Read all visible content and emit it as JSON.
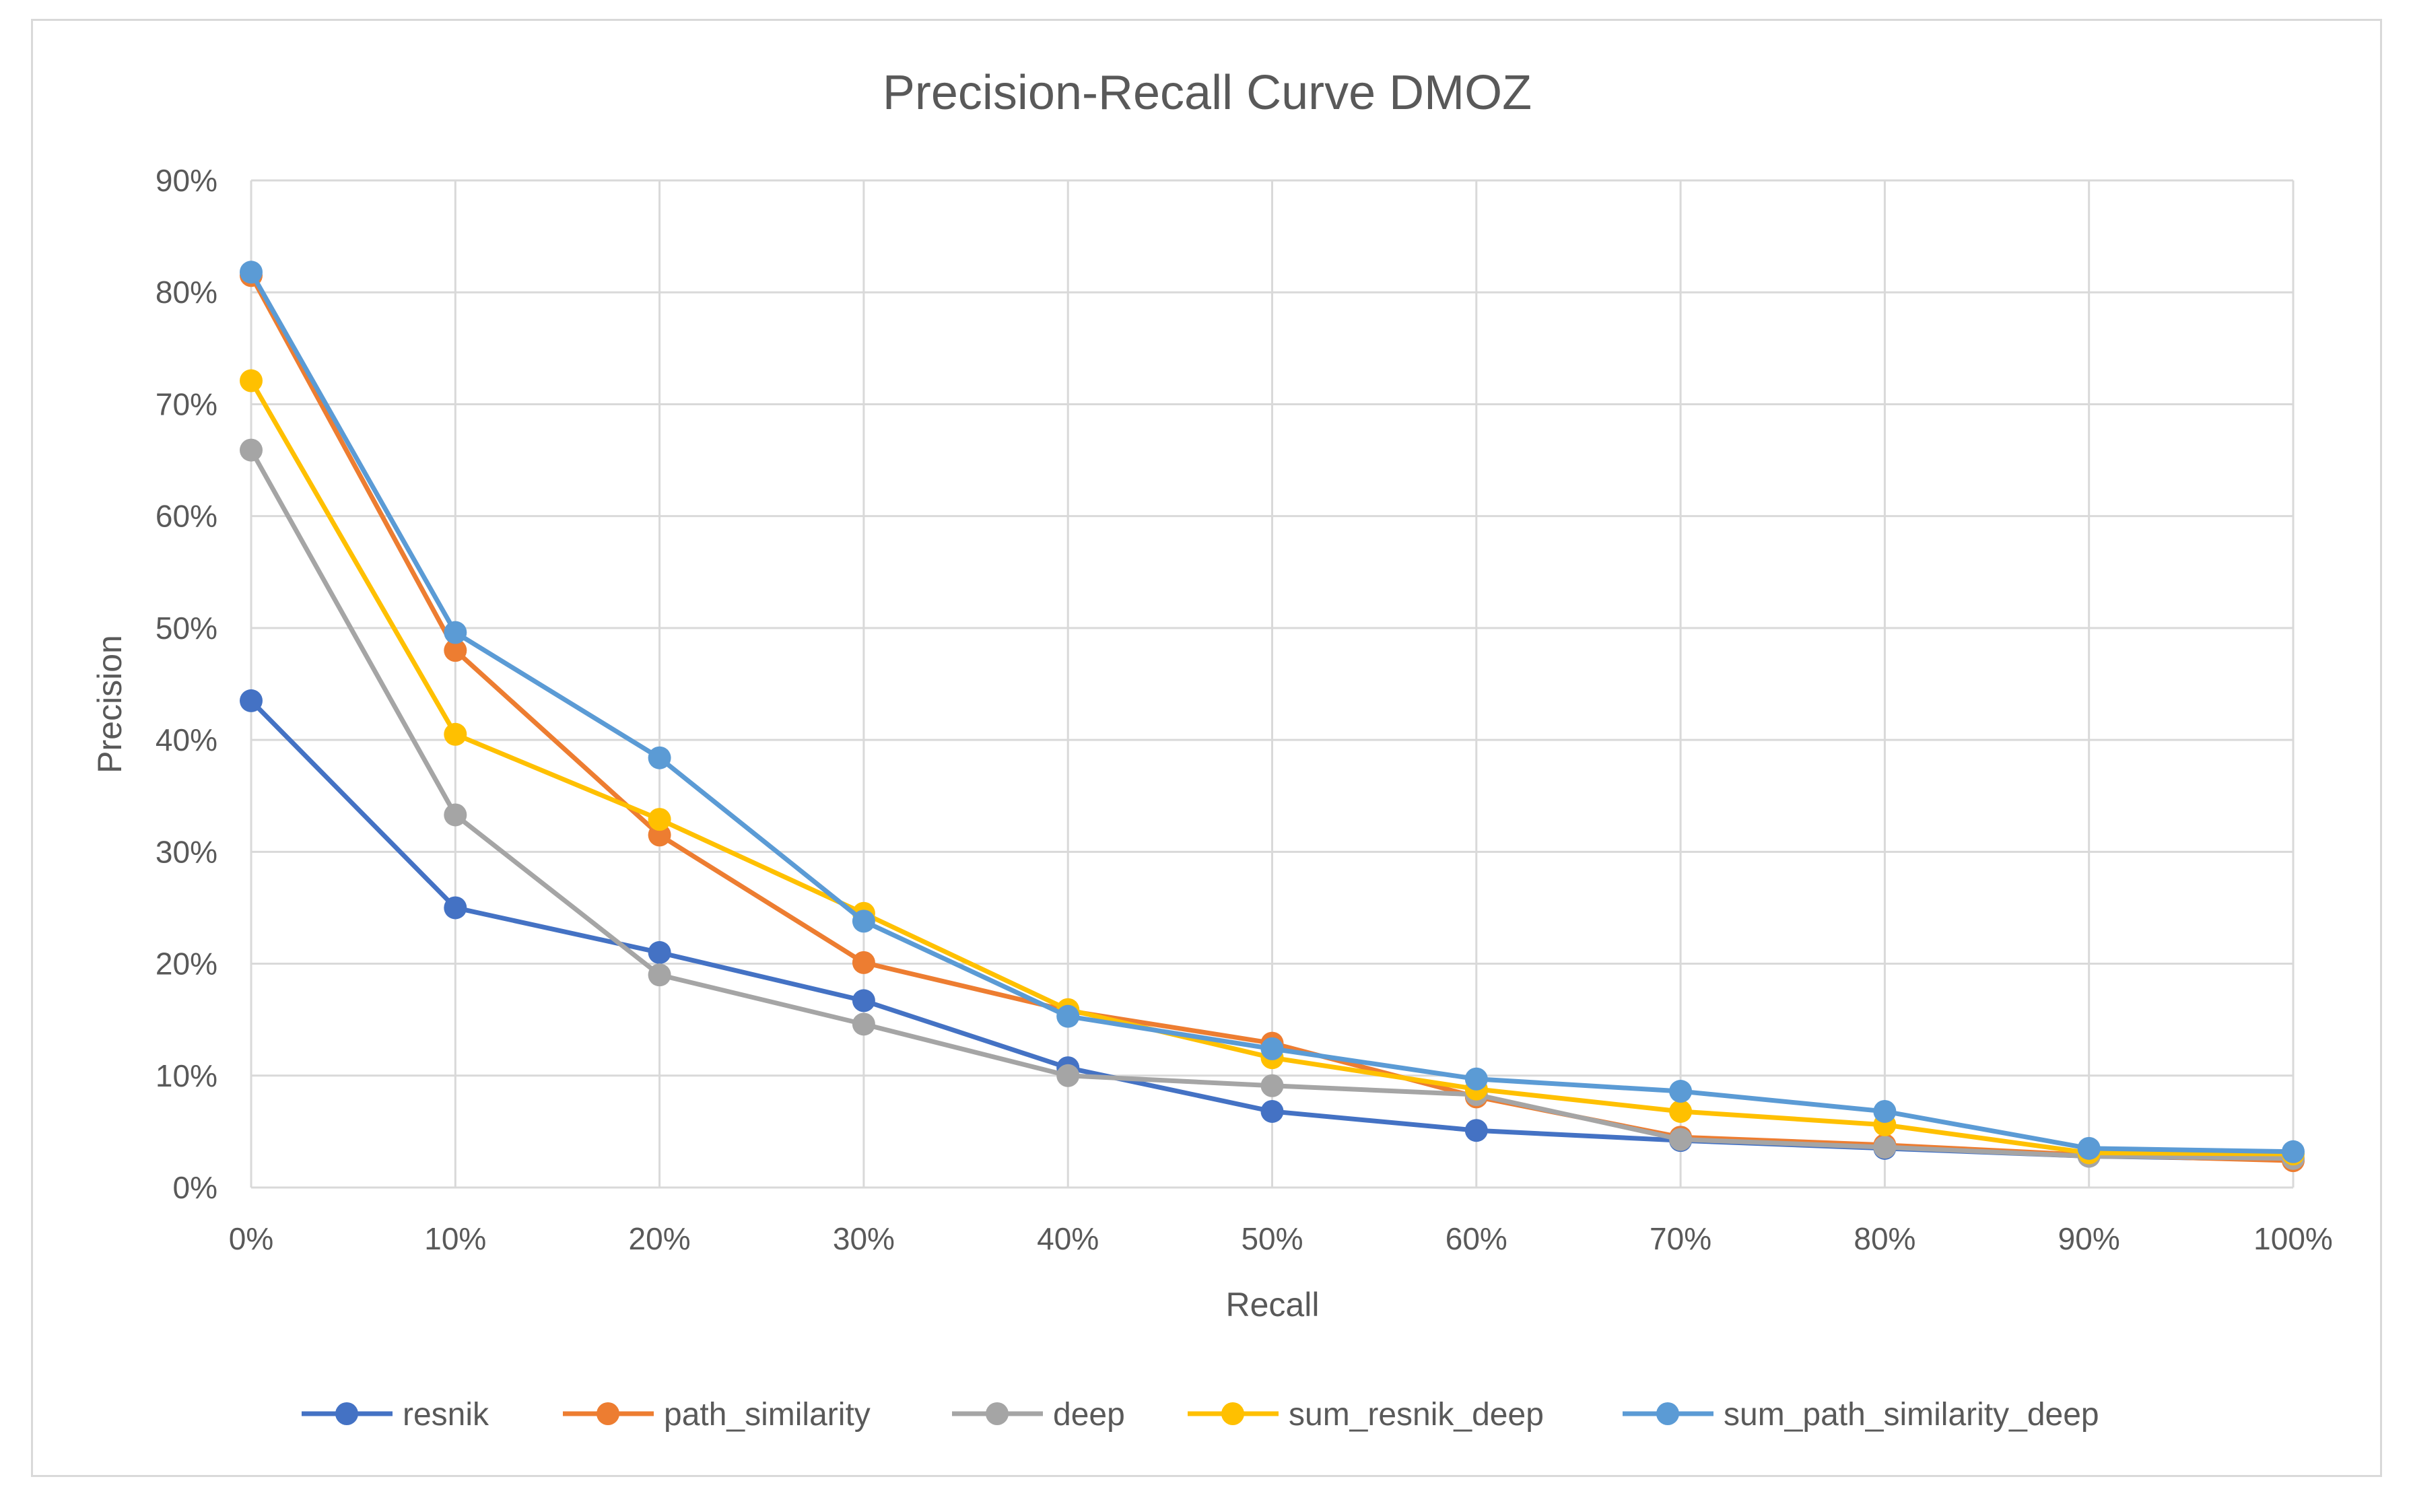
{
  "chart_data": {
    "type": "line",
    "title": "Precision-Recall Curve DMOZ",
    "xlabel": "Recall",
    "ylabel": "Precision",
    "x": [
      "0%",
      "10%",
      "20%",
      "30%",
      "40%",
      "50%",
      "60%",
      "70%",
      "80%",
      "90%",
      "100%"
    ],
    "y_ticks": [
      "0%",
      "10%",
      "20%",
      "30%",
      "40%",
      "50%",
      "60%",
      "70%",
      "80%",
      "90%"
    ],
    "ylim": [
      0,
      90
    ],
    "grid": true,
    "legend_position": "bottom",
    "series": [
      {
        "name": "resnik",
        "color": "#4472C4",
        "values": [
          43.5,
          25.0,
          21.0,
          16.7,
          10.7,
          6.8,
          5.1,
          4.2,
          3.5,
          2.8,
          2.5
        ]
      },
      {
        "name": "path_similarity",
        "color": "#ED7D31",
        "values": [
          81.5,
          48.0,
          31.5,
          20.1,
          15.8,
          12.9,
          8.1,
          4.5,
          3.8,
          2.9,
          2.4
        ]
      },
      {
        "name": "deep",
        "color": "#A5A5A5",
        "values": [
          65.9,
          33.3,
          19.0,
          14.6,
          10.0,
          9.1,
          8.3,
          4.3,
          3.6,
          2.8,
          2.6
        ]
      },
      {
        "name": "sum_resnik_deep",
        "color": "#FFC000",
        "values": [
          72.1,
          40.5,
          32.9,
          24.5,
          15.9,
          11.6,
          8.8,
          6.8,
          5.6,
          3.1,
          3.0
        ]
      },
      {
        "name": "sum_path_similarity_deep",
        "color": "#5B9BD5",
        "values": [
          81.8,
          49.6,
          38.4,
          23.8,
          15.3,
          12.4,
          9.7,
          8.6,
          6.8,
          3.5,
          3.2
        ]
      }
    ]
  }
}
